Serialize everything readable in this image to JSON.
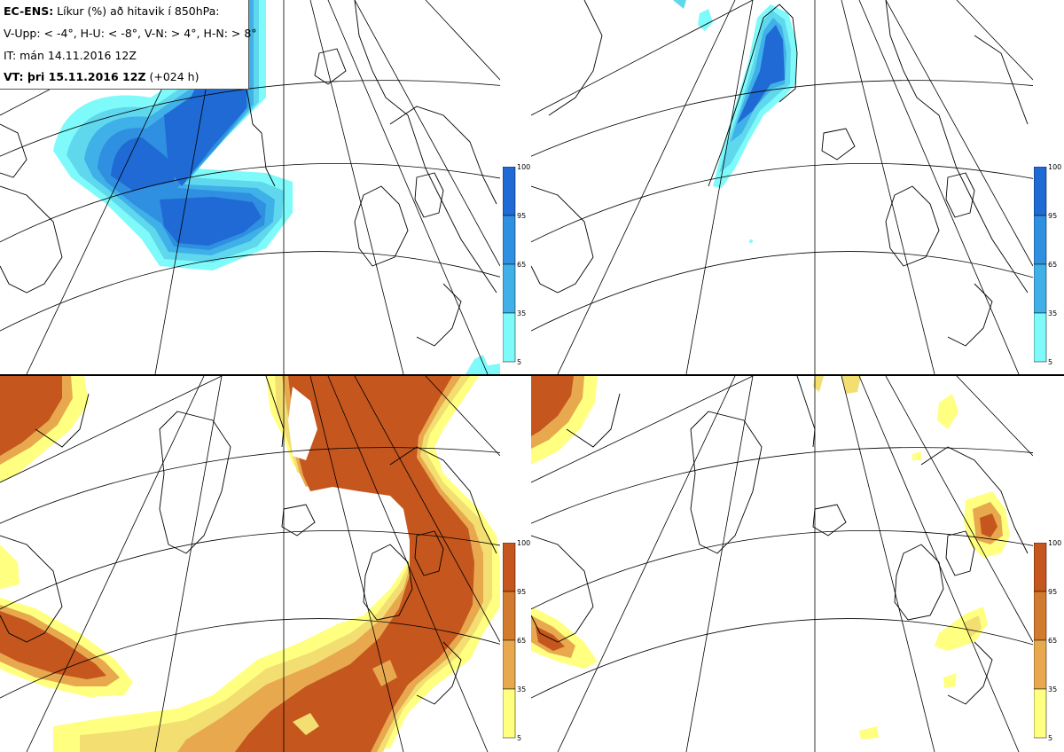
{
  "info": {
    "product": "EC-ENS:",
    "product_desc": " Líkur (%) að hitavik í 850hPa:",
    "thresholds": "V-Upp: < -4°, H-U: < -8°, V-N: > 4°, H-N: > 8°",
    "init_time": "IT: mán 14.11.2016 12Z",
    "valid_prefix": "VT: þri 15.11.2016 12Z",
    "valid_suffix": " (+024 h)"
  },
  "colorbar_ticks": [
    "100",
    "95",
    "65",
    "35",
    "5"
  ],
  "colors": {
    "cold_scale": [
      "#7ffafa",
      "#5fd8ee",
      "#3fb0e8",
      "#2f8fe0",
      "#1f6ad4"
    ],
    "warm_scale": [
      "#ffff80",
      "#f3de72",
      "#e8a84e",
      "#d27a2e",
      "#c4561e"
    ],
    "coastline": "#000000",
    "gridline": "#000000"
  },
  "panels": [
    {
      "id": "cold-moderate",
      "anomaly": "< -4°",
      "scale": "cold"
    },
    {
      "id": "cold-strong",
      "anomaly": "< -8°",
      "scale": "cold"
    },
    {
      "id": "warm-moderate",
      "anomaly": "> 4°",
      "scale": "warm"
    },
    {
      "id": "warm-strong",
      "anomaly": "> 8°",
      "scale": "warm"
    }
  ]
}
